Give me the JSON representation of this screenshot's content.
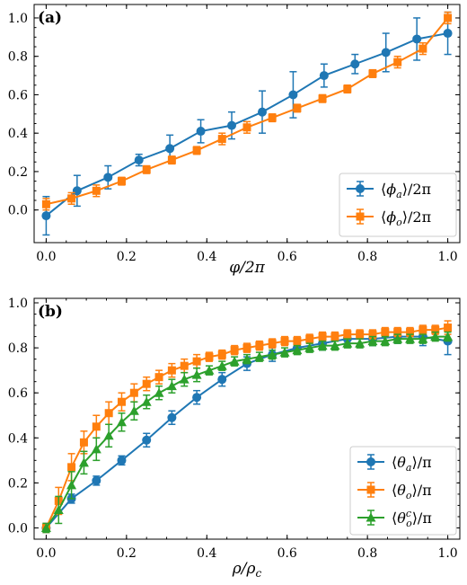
{
  "chart_data": [
    {
      "panel": "(a)",
      "type": "line",
      "xlabel": "φ/2π",
      "ylabel": "",
      "xlim": [
        -0.03,
        1.03
      ],
      "ylim": [
        -0.17,
        1.07
      ],
      "xticks": [
        0.0,
        0.2,
        0.4,
        0.6,
        0.8,
        1.0
      ],
      "xtick_labels": [
        "0.0",
        "0.2",
        "0.4",
        "0.6",
        "0.8",
        "1.0"
      ],
      "yticks": [
        0.0,
        0.2,
        0.4,
        0.6,
        0.8,
        1.0
      ],
      "ytick_labels": [
        "0.0",
        "0.2",
        "0.4",
        "0.6",
        "0.8",
        "1.0"
      ],
      "legend_position": "bottom-right",
      "series": [
        {
          "name": "⟨ϕa⟩/2π",
          "color": "#1f77b4",
          "marker": "circle",
          "x": [
            0.0,
            0.077,
            0.154,
            0.231,
            0.308,
            0.385,
            0.462,
            0.538,
            0.615,
            0.692,
            0.769,
            0.846,
            0.923,
            1.0
          ],
          "y": [
            -0.03,
            0.1,
            0.17,
            0.26,
            0.32,
            0.41,
            0.44,
            0.51,
            0.6,
            0.7,
            0.76,
            0.82,
            0.89,
            0.92
          ],
          "err": [
            0.1,
            0.08,
            0.06,
            0.03,
            0.07,
            0.06,
            0.07,
            0.11,
            0.12,
            0.06,
            0.05,
            0.1,
            0.11,
            0.11
          ]
        },
        {
          "name": "⟨ϕo⟩/2π",
          "color": "#ff7f0e",
          "marker": "square",
          "x": [
            0.0,
            0.063,
            0.125,
            0.188,
            0.25,
            0.313,
            0.375,
            0.438,
            0.5,
            0.563,
            0.625,
            0.688,
            0.75,
            0.813,
            0.875,
            0.938,
            1.0
          ],
          "y": [
            0.03,
            0.06,
            0.1,
            0.15,
            0.21,
            0.26,
            0.31,
            0.37,
            0.43,
            0.48,
            0.53,
            0.58,
            0.63,
            0.71,
            0.77,
            0.84,
            1.0
          ],
          "err": [
            0.03,
            0.03,
            0.03,
            0.02,
            0.02,
            0.02,
            0.02,
            0.03,
            0.03,
            0.02,
            0.02,
            0.02,
            0.02,
            0.02,
            0.03,
            0.03,
            0.03
          ]
        }
      ]
    },
    {
      "panel": "(b)",
      "type": "line",
      "xlabel": "ρ/ρc",
      "ylabel": "",
      "xlim": [
        -0.03,
        1.03
      ],
      "ylim": [
        -0.05,
        1.02
      ],
      "xticks": [
        0.0,
        0.2,
        0.4,
        0.6,
        0.8,
        1.0
      ],
      "xtick_labels": [
        "0.0",
        "0.2",
        "0.4",
        "0.6",
        "0.8",
        "1.0"
      ],
      "yticks": [
        0.0,
        0.2,
        0.4,
        0.6,
        0.8,
        1.0
      ],
      "ytick_labels": [
        "0.0",
        "0.2",
        "0.4",
        "0.6",
        "0.8",
        "1.0"
      ],
      "legend_position": "bottom-right",
      "series": [
        {
          "name": "⟨θa⟩/π",
          "color": "#1f77b4",
          "marker": "circle",
          "x": [
            0.0,
            0.063,
            0.125,
            0.188,
            0.25,
            0.313,
            0.375,
            0.438,
            0.5,
            0.563,
            0.625,
            0.688,
            0.75,
            0.813,
            0.875,
            0.938,
            1.0
          ],
          "y": [
            0.0,
            0.13,
            0.21,
            0.3,
            0.39,
            0.49,
            0.58,
            0.66,
            0.73,
            0.77,
            0.8,
            0.82,
            0.84,
            0.84,
            0.85,
            0.85,
            0.83
          ],
          "err": [
            0.02,
            0.02,
            0.02,
            0.02,
            0.03,
            0.03,
            0.03,
            0.03,
            0.03,
            0.03,
            0.02,
            0.03,
            0.02,
            0.03,
            0.03,
            0.04,
            0.06
          ]
        },
        {
          "name": "⟨θo⟩/π",
          "color": "#ff7f0e",
          "marker": "square",
          "x": [
            0.0,
            0.031,
            0.063,
            0.094,
            0.125,
            0.156,
            0.188,
            0.219,
            0.25,
            0.281,
            0.313,
            0.344,
            0.375,
            0.406,
            0.438,
            0.469,
            0.5,
            0.531,
            0.563,
            0.594,
            0.625,
            0.656,
            0.688,
            0.719,
            0.75,
            0.781,
            0.813,
            0.844,
            0.875,
            0.906,
            0.938,
            0.969,
            1.0
          ],
          "y": [
            0.0,
            0.12,
            0.27,
            0.38,
            0.45,
            0.51,
            0.56,
            0.6,
            0.64,
            0.67,
            0.7,
            0.72,
            0.74,
            0.76,
            0.77,
            0.79,
            0.8,
            0.81,
            0.82,
            0.83,
            0.83,
            0.84,
            0.85,
            0.85,
            0.86,
            0.86,
            0.86,
            0.87,
            0.87,
            0.87,
            0.88,
            0.88,
            0.89
          ],
          "err": [
            0.02,
            0.06,
            0.06,
            0.05,
            0.05,
            0.05,
            0.04,
            0.04,
            0.03,
            0.03,
            0.03,
            0.03,
            0.03,
            0.02,
            0.02,
            0.02,
            0.02,
            0.02,
            0.02,
            0.02,
            0.02,
            0.02,
            0.02,
            0.02,
            0.02,
            0.02,
            0.02,
            0.02,
            0.02,
            0.02,
            0.02,
            0.02,
            0.03
          ]
        },
        {
          "name": "⟨θoc⟩/π",
          "color": "#2ca02c",
          "marker": "triangle",
          "x": [
            0.0,
            0.031,
            0.063,
            0.094,
            0.125,
            0.156,
            0.188,
            0.219,
            0.25,
            0.281,
            0.313,
            0.344,
            0.375,
            0.406,
            0.438,
            0.469,
            0.5,
            0.531,
            0.563,
            0.594,
            0.625,
            0.656,
            0.688,
            0.719,
            0.75,
            0.781,
            0.813,
            0.844,
            0.875,
            0.906,
            0.938,
            0.969,
            1.0
          ],
          "y": [
            0.0,
            0.08,
            0.19,
            0.29,
            0.35,
            0.41,
            0.47,
            0.52,
            0.56,
            0.6,
            0.63,
            0.66,
            0.68,
            0.7,
            0.72,
            0.74,
            0.75,
            0.76,
            0.77,
            0.78,
            0.79,
            0.8,
            0.81,
            0.81,
            0.82,
            0.82,
            0.83,
            0.83,
            0.84,
            0.84,
            0.84,
            0.85,
            0.85
          ],
          "err": [
            0.02,
            0.06,
            0.06,
            0.05,
            0.05,
            0.05,
            0.04,
            0.04,
            0.03,
            0.03,
            0.03,
            0.03,
            0.03,
            0.02,
            0.02,
            0.02,
            0.02,
            0.02,
            0.02,
            0.02,
            0.02,
            0.02,
            0.02,
            0.02,
            0.02,
            0.02,
            0.02,
            0.02,
            0.02,
            0.02,
            0.02,
            0.02,
            0.02
          ]
        }
      ]
    }
  ]
}
